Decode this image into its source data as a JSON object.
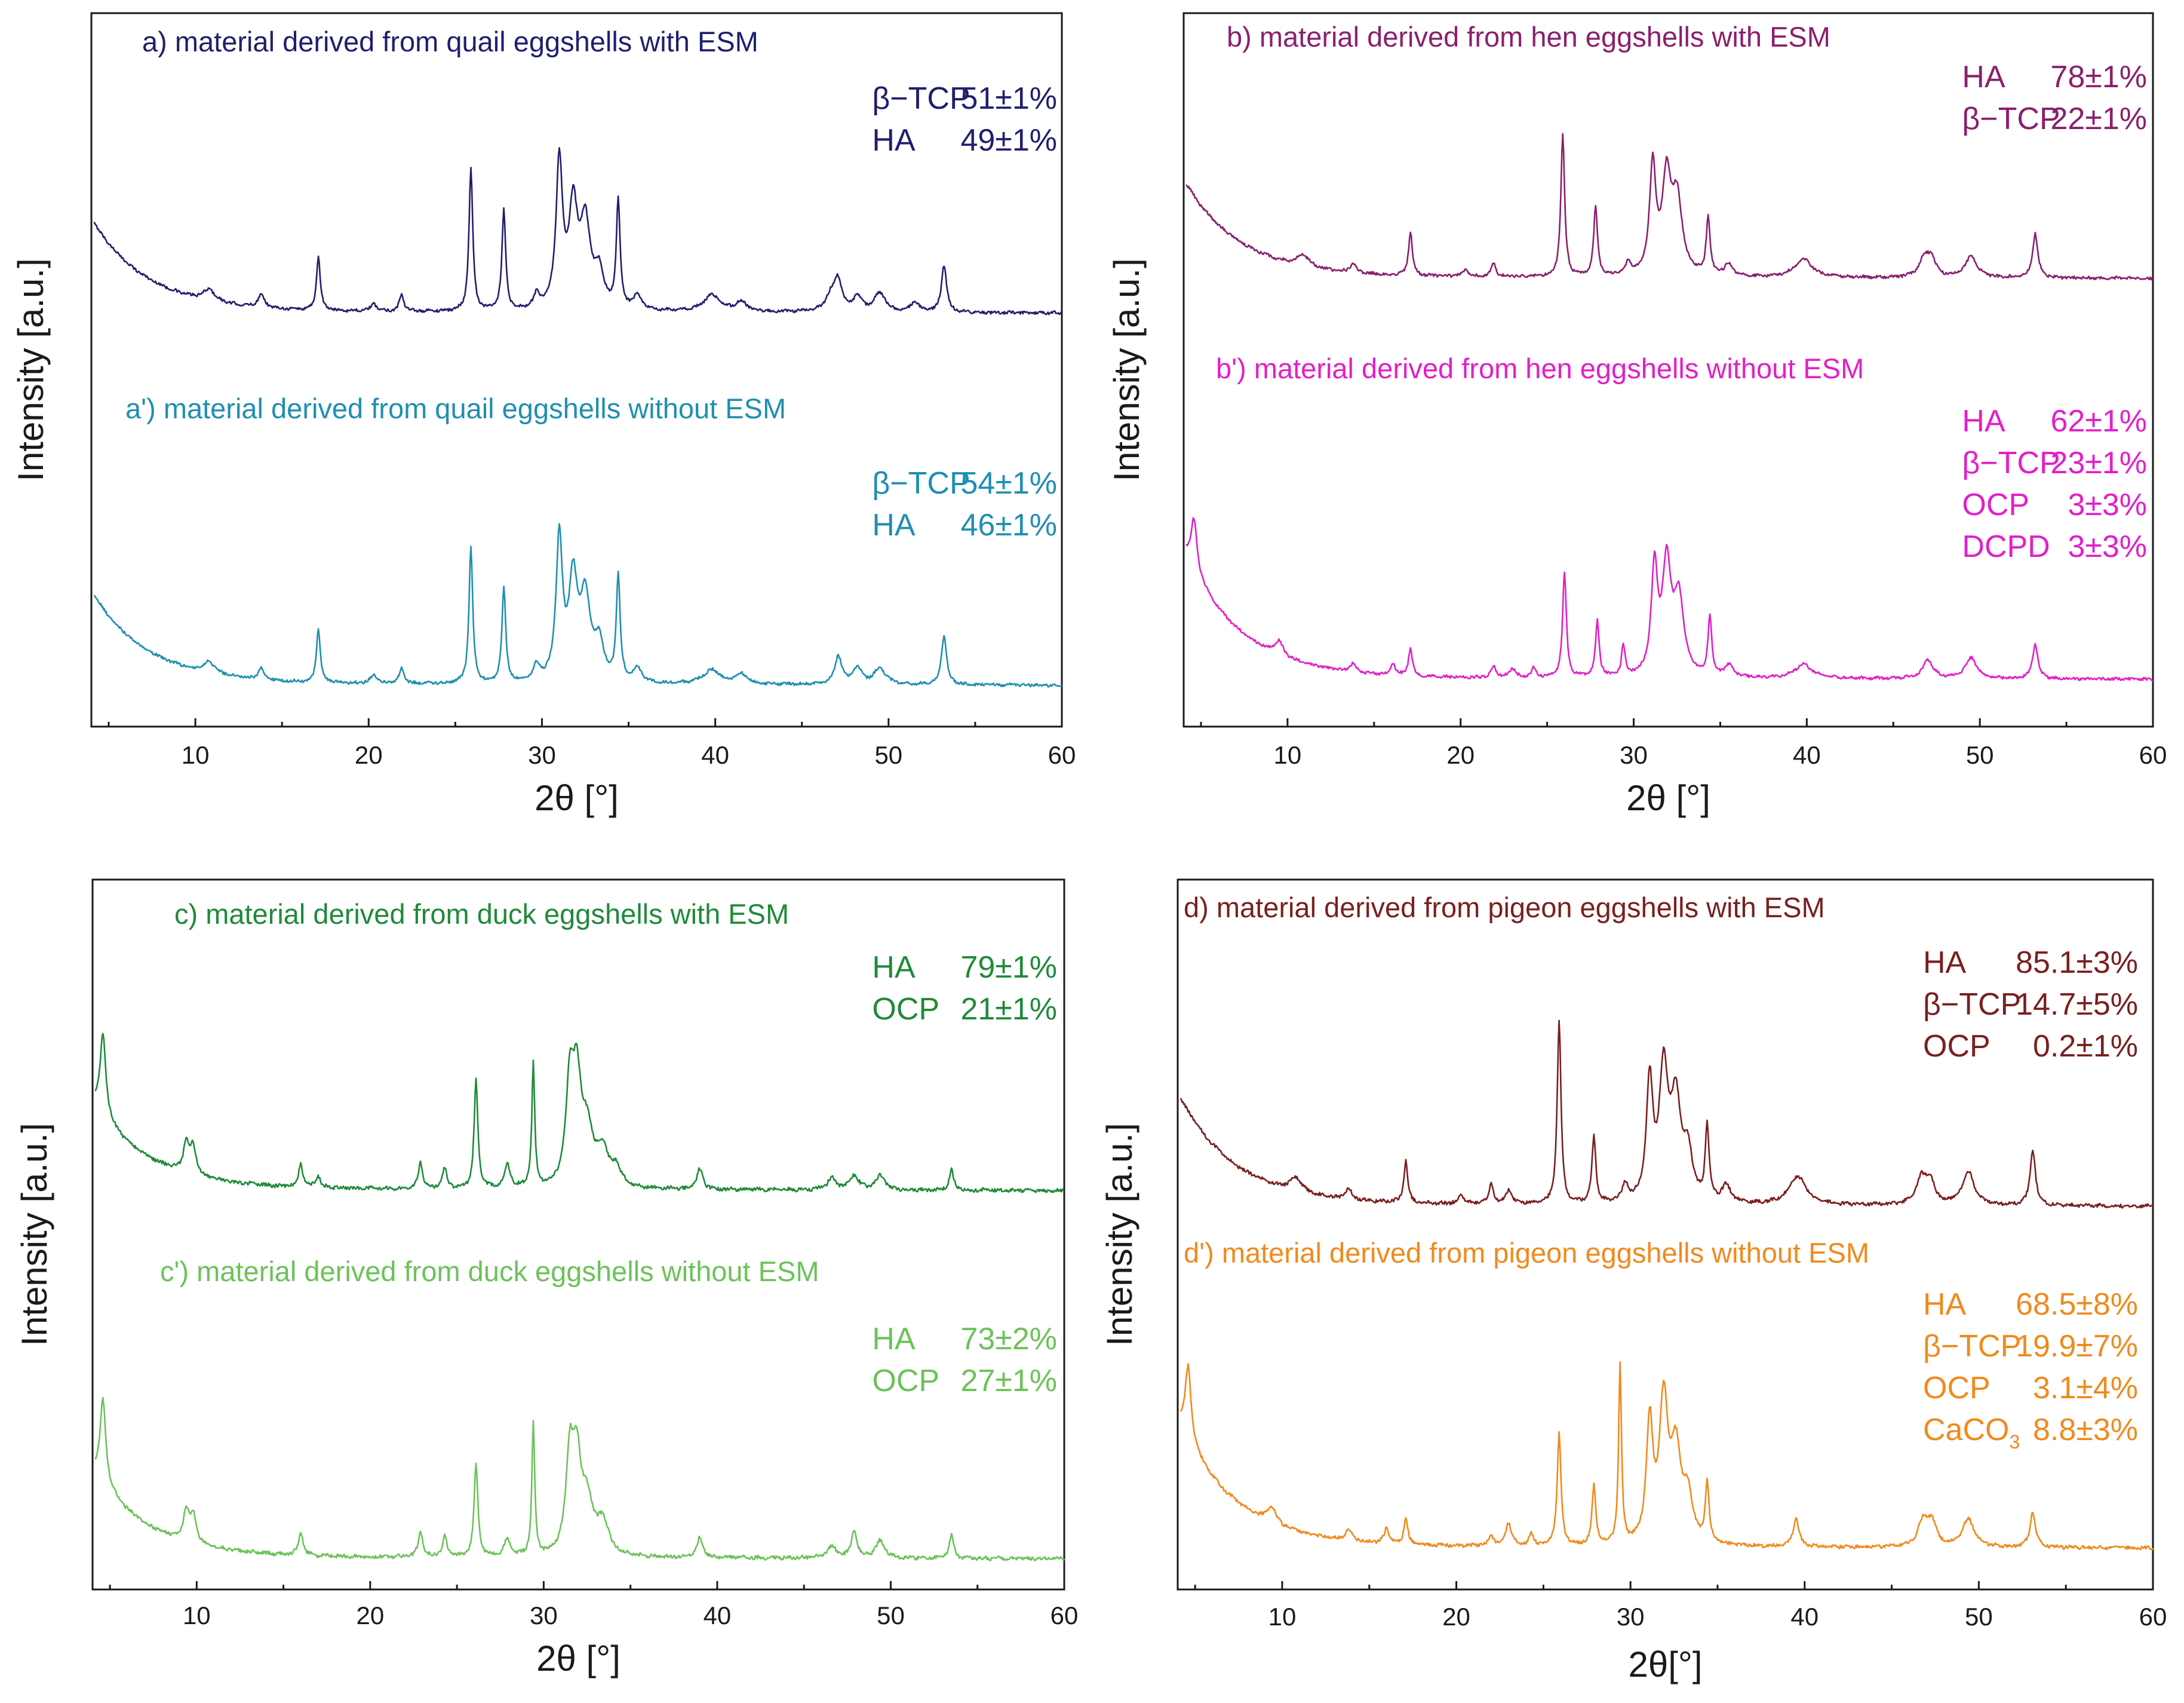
{
  "chart_data": [
    {
      "panel": "a",
      "type": "line",
      "xlabel": "2θ [°]",
      "ylabel": "Intensity [a.u.]",
      "xlim": [
        4,
        60
      ],
      "xticks": [
        10,
        20,
        30,
        40,
        50,
        60
      ],
      "tick_labels": [
        "10",
        "20",
        "30",
        "40",
        "50",
        "60"
      ],
      "series": [
        {
          "title": "a) material derived from quail eggshells with ESM",
          "color": "#1f1f6e",
          "base": 0.8,
          "amp": 4.0,
          "peaks": [
            [
              10.8,
              0.5,
              0.4
            ],
            [
              13.8,
              0.6,
              0.2
            ],
            [
              17.1,
              2.3,
              0.13
            ],
            [
              20.3,
              0.3,
              0.2
            ],
            [
              21.9,
              0.7,
              0.15
            ],
            [
              25.9,
              6.1,
              0.13
            ],
            [
              27.8,
              4.3,
              0.13
            ],
            [
              29.7,
              0.6,
              0.2
            ],
            [
              31.0,
              6.3,
              0.22
            ],
            [
              31.8,
              4.2,
              0.3
            ],
            [
              32.5,
              3.6,
              0.35
            ],
            [
              33.3,
              1.5,
              0.3
            ],
            [
              34.4,
              4.6,
              0.13
            ],
            [
              35.5,
              0.6,
              0.3
            ],
            [
              39.8,
              0.7,
              0.6
            ],
            [
              41.5,
              0.4,
              0.4
            ],
            [
              46.7,
              0.7,
              0.4
            ],
            [
              47.1,
              1.2,
              0.25
            ],
            [
              48.2,
              0.6,
              0.3
            ],
            [
              49.5,
              0.8,
              0.4
            ],
            [
              51.5,
              0.4,
              0.3
            ],
            [
              53.2,
              2.0,
              0.18
            ]
          ],
          "annotations": [
            {
              "label": "β−TCP",
              "value": "51±1%"
            },
            {
              "label": "HA",
              "value": "49±1%"
            }
          ]
        },
        {
          "title": "a') material derived from quail eggshells without ESM",
          "color": "#1f8fb0",
          "base": 0.8,
          "amp": 4.0,
          "peaks": [
            [
              10.8,
              0.5,
              0.4
            ],
            [
              13.8,
              0.5,
              0.2
            ],
            [
              17.1,
              2.3,
              0.13
            ],
            [
              20.3,
              0.4,
              0.2
            ],
            [
              21.9,
              0.7,
              0.15
            ],
            [
              25.9,
              5.8,
              0.13
            ],
            [
              27.8,
              4.1,
              0.13
            ],
            [
              29.7,
              0.7,
              0.2
            ],
            [
              31.0,
              6.1,
              0.22
            ],
            [
              31.8,
              4.2,
              0.3
            ],
            [
              32.5,
              3.5,
              0.35
            ],
            [
              33.3,
              1.6,
              0.3
            ],
            [
              34.4,
              4.5,
              0.13
            ],
            [
              35.5,
              0.6,
              0.3
            ],
            [
              39.8,
              0.6,
              0.6
            ],
            [
              41.5,
              0.4,
              0.4
            ],
            [
              47.1,
              1.2,
              0.25
            ],
            [
              48.2,
              0.7,
              0.3
            ],
            [
              49.5,
              0.7,
              0.4
            ],
            [
              53.2,
              2.1,
              0.18
            ]
          ],
          "annotations": [
            {
              "label": "β−TCP",
              "value": "54±1%"
            },
            {
              "label": "HA",
              "value": "46±1%"
            }
          ]
        }
      ]
    },
    {
      "panel": "b",
      "type": "line",
      "xlabel": "2θ [°]",
      "ylabel": "Intensity [a.u.]",
      "xlim": [
        4,
        60
      ],
      "xticks": [
        10,
        20,
        30,
        40,
        50,
        60
      ],
      "tick_labels": [
        "10",
        "20",
        "30",
        "40",
        "50",
        "60"
      ],
      "series": [
        {
          "title": "b) material derived from hen eggshells with ESM",
          "color": "#8a1f6e",
          "base": 0.8,
          "amp": 4.2,
          "peaks": [
            [
              10.9,
              0.5,
              0.4
            ],
            [
              13.8,
              0.4,
              0.2
            ],
            [
              17.1,
              1.9,
              0.13
            ],
            [
              20.3,
              0.3,
              0.2
            ],
            [
              21.9,
              0.6,
              0.15
            ],
            [
              25.9,
              6.1,
              0.13
            ],
            [
              27.8,
              3.0,
              0.13
            ],
            [
              29.7,
              0.5,
              0.2
            ],
            [
              31.1,
              4.6,
              0.22
            ],
            [
              31.9,
              4.0,
              0.3
            ],
            [
              32.5,
              3.2,
              0.35
            ],
            [
              34.3,
              2.5,
              0.13
            ],
            [
              35.5,
              0.5,
              0.3
            ],
            [
              39.8,
              0.8,
              0.6
            ],
            [
              46.8,
              0.8,
              0.35
            ],
            [
              47.2,
              0.7,
              0.3
            ],
            [
              49.5,
              0.9,
              0.4
            ],
            [
              53.2,
              1.9,
              0.18
            ]
          ],
          "annotations": [
            {
              "label": "HA",
              "value": "78±1%"
            },
            {
              "label": "β−TCP",
              "value": "22±1%"
            }
          ]
        },
        {
          "title": "b') material derived from hen eggshells without ESM",
          "color": "#e21fc9",
          "base": 0.8,
          "amp": 5.6,
          "peaks": [
            [
              4.6,
              2.2,
              0.2
            ],
            [
              9.5,
              0.6,
              0.3
            ],
            [
              13.8,
              0.4,
              0.2
            ],
            [
              16.1,
              0.5,
              0.15
            ],
            [
              17.1,
              1.2,
              0.13
            ],
            [
              21.9,
              0.5,
              0.15
            ],
            [
              23.0,
              0.4,
              0.2
            ],
            [
              24.2,
              0.4,
              0.15
            ],
            [
              26.0,
              4.5,
              0.13
            ],
            [
              27.9,
              2.4,
              0.13
            ],
            [
              29.4,
              1.3,
              0.12
            ],
            [
              31.2,
              4.5,
              0.22
            ],
            [
              31.9,
              4.6,
              0.3
            ],
            [
              32.6,
              3.3,
              0.35
            ],
            [
              34.4,
              2.5,
              0.13
            ],
            [
              35.5,
              0.5,
              0.3
            ],
            [
              39.8,
              0.6,
              0.6
            ],
            [
              47.0,
              0.8,
              0.35
            ],
            [
              49.5,
              0.9,
              0.4
            ],
            [
              53.2,
              1.5,
              0.18
            ]
          ],
          "annotations": [
            {
              "label": "HA",
              "value": "62±1%"
            },
            {
              "label": "β−TCP",
              "value": "23±1%"
            },
            {
              "label": "OCP",
              "value": "3±3%"
            },
            {
              "label": "DCPD",
              "value": "3±3%"
            }
          ]
        }
      ]
    },
    {
      "panel": "c",
      "type": "line",
      "xlabel": "2θ [°]",
      "ylabel": "Intensity [a.u.]",
      "xlim": [
        4,
        60
      ],
      "xticks": [
        10,
        20,
        30,
        40,
        50,
        60
      ],
      "tick_labels": [
        "10",
        "20",
        "30",
        "40",
        "50",
        "60"
      ],
      "series": [
        {
          "title": "c) material derived from duck eggshells with ESM",
          "color": "#1f8a3a",
          "base": 0.6,
          "amp": 3.0,
          "peaks": [
            [
              4.6,
              2.8,
              0.2
            ],
            [
              9.4,
              1.0,
              0.2
            ],
            [
              9.8,
              0.9,
              0.2
            ],
            [
              16.0,
              0.8,
              0.15
            ],
            [
              17.0,
              0.4,
              0.15
            ],
            [
              22.9,
              0.9,
              0.15
            ],
            [
              24.3,
              0.7,
              0.15
            ],
            [
              26.1,
              3.7,
              0.13
            ],
            [
              27.9,
              0.8,
              0.2
            ],
            [
              29.4,
              4.2,
              0.1
            ],
            [
              31.5,
              3.2,
              0.25
            ],
            [
              31.9,
              3.4,
              0.3
            ],
            [
              32.5,
              1.8,
              0.4
            ],
            [
              33.4,
              1.2,
              0.4
            ],
            [
              34.2,
              0.6,
              0.3
            ],
            [
              39.0,
              0.7,
              0.2
            ],
            [
              46.6,
              0.4,
              0.3
            ],
            [
              47.9,
              0.5,
              0.3
            ],
            [
              49.4,
              0.5,
              0.3
            ],
            [
              53.5,
              0.7,
              0.15
            ]
          ],
          "annotations": [
            {
              "label": "HA",
              "value": "79±1%"
            },
            {
              "label": "OCP",
              "value": "21±1%"
            }
          ]
        },
        {
          "title": "c') material derived from duck eggshells without ESM",
          "color": "#6cc25a",
          "base": 0.6,
          "amp": 3.0,
          "peaks": [
            [
              4.6,
              2.9,
              0.2
            ],
            [
              9.4,
              1.0,
              0.2
            ],
            [
              9.8,
              0.9,
              0.2
            ],
            [
              16.0,
              0.8,
              0.15
            ],
            [
              22.9,
              0.9,
              0.15
            ],
            [
              24.3,
              0.7,
              0.15
            ],
            [
              26.1,
              3.2,
              0.13
            ],
            [
              27.9,
              0.6,
              0.2
            ],
            [
              29.4,
              4.5,
              0.1
            ],
            [
              31.5,
              3.1,
              0.25
            ],
            [
              31.9,
              3.0,
              0.3
            ],
            [
              32.5,
              1.7,
              0.4
            ],
            [
              33.4,
              1.1,
              0.4
            ],
            [
              39.0,
              0.7,
              0.2
            ],
            [
              46.6,
              0.4,
              0.3
            ],
            [
              47.9,
              0.9,
              0.2
            ],
            [
              49.4,
              0.6,
              0.3
            ],
            [
              53.5,
              0.8,
              0.15
            ]
          ],
          "annotations": [
            {
              "label": "HA",
              "value": "73±2%"
            },
            {
              "label": "OCP",
              "value": "27±1%"
            }
          ]
        }
      ]
    },
    {
      "panel": "d",
      "type": "line",
      "xlabel": "2θ[°]",
      "ylabel": "Intensity [a.u.]",
      "xlim": [
        4,
        60
      ],
      "xticks": [
        10,
        20,
        30,
        40,
        50,
        60
      ],
      "tick_labels": [
        "10",
        "20",
        "30",
        "40",
        "50",
        "60"
      ],
      "series": [
        {
          "title": "d) material derived from pigeon eggshells with ESM",
          "color": "#7a1f1f",
          "base": 0.8,
          "amp": 4.0,
          "peaks": [
            [
              10.8,
              0.5,
              0.4
            ],
            [
              13.8,
              0.4,
              0.2
            ],
            [
              17.1,
              1.5,
              0.13
            ],
            [
              20.3,
              0.3,
              0.2
            ],
            [
              22.0,
              0.7,
              0.15
            ],
            [
              23.0,
              0.5,
              0.2
            ],
            [
              25.9,
              6.5,
              0.13
            ],
            [
              27.9,
              2.4,
              0.13
            ],
            [
              29.7,
              0.6,
              0.2
            ],
            [
              31.1,
              4.2,
              0.22
            ],
            [
              31.9,
              4.5,
              0.3
            ],
            [
              32.6,
              3.5,
              0.35
            ],
            [
              33.3,
              1.6,
              0.3
            ],
            [
              34.4,
              2.6,
              0.13
            ],
            [
              35.5,
              0.6,
              0.3
            ],
            [
              39.6,
              1.0,
              0.6
            ],
            [
              46.7,
              0.9,
              0.35
            ],
            [
              47.2,
              0.8,
              0.3
            ],
            [
              49.4,
              1.2,
              0.4
            ],
            [
              53.1,
              2.0,
              0.18
            ]
          ],
          "annotations": [
            {
              "label": "HA",
              "value": "85.1±3%"
            },
            {
              "label": "β−TCP",
              "value": "14.7±5%"
            },
            {
              "label": "OCP",
              "value": "0.2±1%"
            }
          ]
        },
        {
          "title": "d') material derived from pigeon eggshells without ESM",
          "color": "#f08a1c",
          "base": 0.8,
          "amp": 4.6,
          "peaks": [
            [
              4.6,
              2.6,
              0.2
            ],
            [
              9.4,
              0.6,
              0.3
            ],
            [
              13.8,
              0.4,
              0.2
            ],
            [
              16.0,
              0.6,
              0.15
            ],
            [
              17.1,
              0.9,
              0.13
            ],
            [
              22.0,
              0.4,
              0.15
            ],
            [
              23.0,
              0.8,
              0.2
            ],
            [
              24.3,
              0.4,
              0.15
            ],
            [
              25.9,
              4.0,
              0.13
            ],
            [
              27.9,
              2.1,
              0.13
            ],
            [
              29.4,
              6.3,
              0.1
            ],
            [
              31.1,
              4.2,
              0.22
            ],
            [
              31.9,
              4.9,
              0.3
            ],
            [
              32.6,
              3.2,
              0.35
            ],
            [
              33.3,
              1.6,
              0.3
            ],
            [
              34.4,
              2.1,
              0.13
            ],
            [
              39.5,
              1.0,
              0.2
            ],
            [
              46.8,
              0.9,
              0.35
            ],
            [
              47.3,
              0.8,
              0.3
            ],
            [
              49.4,
              1.0,
              0.4
            ],
            [
              53.1,
              1.3,
              0.18
            ]
          ],
          "annotations": [
            {
              "label": "HA",
              "value": "68.5±8%"
            },
            {
              "label": "β−TCP",
              "value": "19.9±7%"
            },
            {
              "label": "OCP",
              "value": "3.1±4%"
            },
            {
              "label": "CaCO",
              "sub": "3",
              "value": "8.8±3%"
            }
          ]
        }
      ]
    }
  ]
}
